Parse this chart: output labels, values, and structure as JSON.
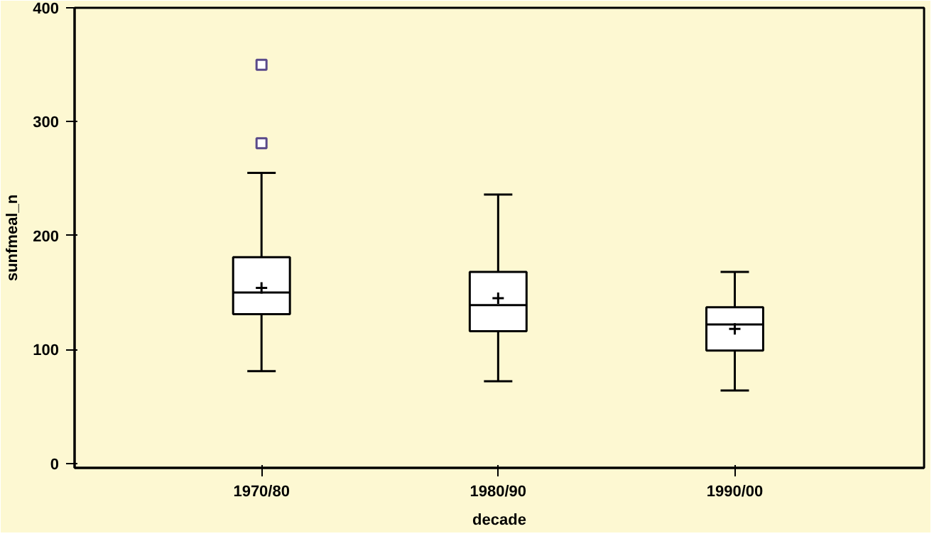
{
  "chart_data": {
    "type": "box",
    "xlabel": "decade",
    "ylabel": "sunfmeal_n",
    "categories": [
      "1970/80",
      "1980/90",
      "1990/00"
    ],
    "boxes": [
      {
        "low": 81,
        "q1": 131,
        "median": 150,
        "q3": 181,
        "high": 255,
        "mean": 154,
        "outliers": [
          281,
          350
        ]
      },
      {
        "low": 72,
        "q1": 116,
        "median": 139,
        "q3": 168,
        "high": 236,
        "mean": 145
      },
      {
        "low": 64,
        "q1": 99,
        "median": 122,
        "q3": 137,
        "high": 168,
        "mean": 118
      }
    ],
    "color": "#ffffff",
    "ylim": [
      -4,
      400
    ],
    "yticks": [
      0,
      100,
      200,
      300,
      400
    ],
    "grid": false
  }
}
